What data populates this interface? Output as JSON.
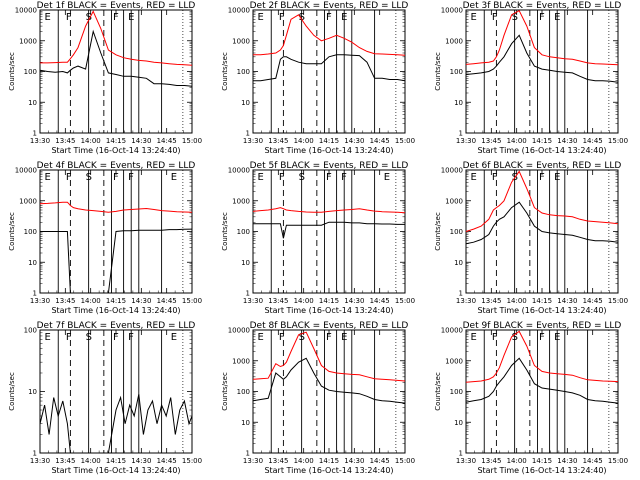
{
  "figure": {
    "xtick_labels": [
      "13:30",
      "13:45",
      "14:00",
      "14:15",
      "14:30",
      "14:45",
      "15:00"
    ],
    "xlabel": "Start Time (16-Oct-14 13:24:40)",
    "ylabel": "Counts/sec",
    "colors": {
      "events": "#000000",
      "lld": "#ff0000"
    }
  },
  "chart_data": [
    {
      "type": "line",
      "title": "Det 1f BLACK = Events, RED = LLD",
      "has_lld": true,
      "ylim": [
        1,
        10000
      ],
      "yscale": "log",
      "ytick_labels": [
        "1",
        "10",
        "100",
        "1000",
        "10000"
      ],
      "xlim_minutes": [
        0,
        100
      ],
      "segment_labels": [
        "E",
        "F",
        "S",
        "F",
        "E"
      ],
      "series": [
        {
          "name": "BLACK = Events",
          "x": [
            0,
            5,
            10,
            15,
            18,
            20,
            22,
            25,
            30,
            35,
            40,
            45,
            50,
            55,
            60,
            65,
            70,
            75,
            80,
            85,
            90,
            95,
            100
          ],
          "y": [
            110,
            100,
            95,
            100,
            90,
            110,
            130,
            150,
            120,
            2000,
            400,
            90,
            80,
            70,
            70,
            65,
            60,
            40,
            40,
            38,
            35,
            35,
            33
          ]
        },
        {
          "name": "RED = LLD",
          "x": [
            0,
            5,
            10,
            15,
            18,
            20,
            22,
            25,
            30,
            35,
            40,
            45,
            50,
            55,
            60,
            65,
            70,
            75,
            80,
            85,
            90,
            95,
            100
          ],
          "y": [
            190,
            190,
            195,
            200,
            200,
            260,
            350,
            600,
            3000,
            9000,
            2500,
            500,
            350,
            280,
            250,
            230,
            220,
            200,
            190,
            180,
            170,
            165,
            160
          ]
        }
      ]
    },
    {
      "type": "line",
      "title": "Det 2f BLACK = Events, RED = LLD",
      "has_lld": true,
      "ylim": [
        1,
        10000
      ],
      "yscale": "log",
      "ytick_labels": [
        "1",
        "10",
        "100",
        "1000",
        "10000"
      ],
      "xlim_minutes": [
        0,
        100
      ],
      "segment_labels": [
        "E",
        "F",
        "S",
        "F",
        "E"
      ],
      "series": [
        {
          "name": "BLACK = Events",
          "x": [
            0,
            5,
            10,
            15,
            18,
            20,
            22,
            25,
            30,
            35,
            40,
            45,
            50,
            55,
            60,
            65,
            70,
            75,
            80,
            85,
            90,
            95,
            100
          ],
          "y": [
            50,
            50,
            55,
            60,
            250,
            300,
            300,
            250,
            200,
            180,
            180,
            180,
            300,
            350,
            350,
            340,
            330,
            200,
            60,
            60,
            55,
            55,
            50
          ]
        },
        {
          "name": "RED = LLD",
          "x": [
            0,
            5,
            10,
            15,
            18,
            20,
            22,
            25,
            30,
            35,
            40,
            45,
            50,
            55,
            60,
            65,
            70,
            75,
            80,
            85,
            90,
            95,
            100
          ],
          "y": [
            350,
            350,
            370,
            400,
            500,
            700,
            1500,
            5000,
            7000,
            3000,
            1500,
            1000,
            1200,
            1500,
            1200,
            900,
            600,
            450,
            380,
            370,
            360,
            350,
            340
          ]
        }
      ]
    },
    {
      "type": "line",
      "title": "Det 3f BLACK = Events, RED = LLD",
      "has_lld": true,
      "ylim": [
        1,
        10000
      ],
      "yscale": "log",
      "ytick_labels": [
        "1",
        "10",
        "100",
        "1000",
        "10000"
      ],
      "xlim_minutes": [
        0,
        100
      ],
      "segment_labels": [
        "E",
        "F",
        "S",
        "F",
        "E"
      ],
      "series": [
        {
          "name": "BLACK = Events",
          "x": [
            0,
            5,
            10,
            15,
            18,
            20,
            22,
            25,
            30,
            35,
            40,
            45,
            50,
            55,
            60,
            65,
            70,
            75,
            80,
            85,
            90,
            95,
            100
          ],
          "y": [
            80,
            85,
            90,
            100,
            120,
            150,
            200,
            300,
            800,
            1500,
            400,
            150,
            120,
            110,
            100,
            95,
            90,
            70,
            55,
            50,
            50,
            48,
            45
          ]
        },
        {
          "name": "RED = LLD",
          "x": [
            0,
            5,
            10,
            15,
            18,
            20,
            22,
            25,
            30,
            35,
            40,
            45,
            50,
            55,
            60,
            65,
            70,
            75,
            80,
            85,
            90,
            95,
            100
          ],
          "y": [
            170,
            180,
            190,
            200,
            220,
            300,
            500,
            1500,
            7000,
            9500,
            3000,
            600,
            350,
            300,
            280,
            260,
            250,
            220,
            190,
            180,
            175,
            170,
            165
          ]
        }
      ]
    },
    {
      "type": "line",
      "title": "Det 4f BLACK = Events, RED = LLD",
      "has_lld": true,
      "ylim": [
        1,
        10000
      ],
      "yscale": "log",
      "ytick_labels": [
        "1",
        "10",
        "100",
        "1000",
        "10000"
      ],
      "xlim_minutes": [
        0,
        100
      ],
      "segment_labels": [
        "E",
        "F",
        "S",
        "F",
        "F",
        "E"
      ],
      "series": [
        {
          "name": "BLACK = Events",
          "x": [
            0,
            5,
            10,
            15,
            18,
            20,
            22,
            25,
            30,
            35,
            40,
            45,
            50,
            55,
            60,
            65,
            70,
            75,
            80,
            85,
            90,
            95,
            100
          ],
          "y": [
            100,
            100,
            100,
            100,
            100,
            1,
            1,
            1,
            1,
            1,
            1,
            1,
            100,
            105,
            105,
            110,
            110,
            110,
            110,
            115,
            115,
            118,
            120
          ]
        },
        {
          "name": "RED = LLD",
          "x": [
            0,
            5,
            10,
            15,
            18,
            20,
            22,
            25,
            30,
            35,
            40,
            45,
            50,
            55,
            60,
            65,
            70,
            75,
            80,
            85,
            90,
            95,
            100
          ],
          "y": [
            800,
            820,
            850,
            900,
            900,
            700,
            600,
            550,
            500,
            480,
            450,
            420,
            450,
            500,
            520,
            540,
            560,
            520,
            480,
            460,
            440,
            430,
            420
          ]
        }
      ]
    },
    {
      "type": "line",
      "title": "Det 5f BLACK = Events, RED = LLD",
      "has_lld": true,
      "ylim": [
        1,
        10000
      ],
      "yscale": "log",
      "ytick_labels": [
        "1",
        "10",
        "100",
        "1000",
        "10000"
      ],
      "xlim_minutes": [
        0,
        100
      ],
      "segment_labels": [
        "E",
        "F",
        "S",
        "F",
        "F",
        "E"
      ],
      "series": [
        {
          "name": "BLACK = Events",
          "x": [
            0,
            5,
            10,
            15,
            18,
            20,
            22,
            25,
            30,
            35,
            40,
            45,
            50,
            55,
            60,
            65,
            70,
            75,
            80,
            85,
            90,
            95,
            100
          ],
          "y": [
            180,
            180,
            180,
            180,
            180,
            60,
            160,
            160,
            160,
            160,
            160,
            160,
            200,
            200,
            200,
            190,
            190,
            180,
            180,
            175,
            175,
            170,
            170
          ]
        },
        {
          "name": "RED = LLD",
          "x": [
            0,
            5,
            10,
            15,
            18,
            20,
            22,
            25,
            30,
            35,
            40,
            45,
            50,
            55,
            60,
            65,
            70,
            75,
            80,
            85,
            90,
            95,
            100
          ],
          "y": [
            450,
            480,
            500,
            550,
            600,
            550,
            500,
            480,
            450,
            430,
            420,
            420,
            450,
            480,
            500,
            520,
            550,
            500,
            460,
            440,
            430,
            420,
            410
          ]
        }
      ]
    },
    {
      "type": "line",
      "title": "Det 6f BLACK = Events, RED = LLD",
      "has_lld": true,
      "ylim": [
        1,
        10000
      ],
      "yscale": "log",
      "ytick_labels": [
        "1",
        "10",
        "100",
        "1000",
        "10000"
      ],
      "xlim_minutes": [
        0,
        100
      ],
      "segment_labels": [
        "E",
        "F",
        "S",
        "F",
        "E"
      ],
      "series": [
        {
          "name": "BLACK = Events",
          "x": [
            0,
            5,
            10,
            15,
            18,
            20,
            22,
            25,
            30,
            35,
            40,
            45,
            50,
            55,
            60,
            65,
            70,
            75,
            80,
            85,
            90,
            95,
            100
          ],
          "y": [
            40,
            45,
            55,
            80,
            150,
            200,
            250,
            300,
            600,
            900,
            400,
            150,
            100,
            90,
            85,
            80,
            75,
            65,
            55,
            50,
            50,
            48,
            45
          ]
        },
        {
          "name": "RED = LLD",
          "x": [
            0,
            5,
            10,
            15,
            18,
            20,
            22,
            25,
            30,
            35,
            40,
            45,
            50,
            55,
            60,
            65,
            70,
            75,
            80,
            85,
            90,
            95,
            100
          ],
          "y": [
            100,
            120,
            150,
            250,
            500,
            600,
            700,
            1000,
            4000,
            9000,
            2500,
            600,
            400,
            350,
            330,
            320,
            300,
            250,
            220,
            210,
            200,
            190,
            180
          ]
        }
      ]
    },
    {
      "type": "line",
      "title": "Det 7f BLACK = Events, RED = LLD",
      "has_lld": false,
      "ylim": [
        1,
        100
      ],
      "yscale": "log",
      "ytick_labels": [
        "1",
        "10",
        "100"
      ],
      "xlim_minutes": [
        0,
        100
      ],
      "segment_labels": [
        "E",
        "F",
        "S",
        "F",
        "F",
        "E"
      ],
      "series": [
        {
          "name": "BLACK = Events",
          "x": [
            0,
            3,
            6,
            9,
            12,
            15,
            18,
            20,
            22,
            25,
            30,
            35,
            40,
            45,
            50,
            53,
            56,
            59,
            62,
            65,
            68,
            71,
            74,
            77,
            80,
            83,
            86,
            89,
            92,
            95,
            98,
            100
          ],
          "y": [
            3,
            6,
            2,
            8,
            4,
            7,
            3,
            1,
            1,
            1,
            1,
            1,
            1,
            1,
            5,
            8,
            3,
            6,
            4,
            9,
            2,
            5,
            7,
            3,
            6,
            4,
            8,
            2,
            5,
            7,
            3,
            4
          ]
        }
      ]
    },
    {
      "type": "line",
      "title": "Det 8f BLACK = Events, RED = LLD",
      "has_lld": true,
      "ylim": [
        1,
        10000
      ],
      "yscale": "log",
      "ytick_labels": [
        "1",
        "10",
        "100",
        "1000",
        "10000"
      ],
      "xlim_minutes": [
        0,
        100
      ],
      "segment_labels": [
        "E",
        "F",
        "S",
        "F",
        "E"
      ],
      "series": [
        {
          "name": "BLACK = Events",
          "x": [
            0,
            5,
            10,
            15,
            18,
            20,
            22,
            25,
            30,
            35,
            40,
            45,
            50,
            55,
            60,
            65,
            70,
            75,
            80,
            85,
            90,
            95,
            100
          ],
          "y": [
            50,
            55,
            60,
            400,
            300,
            250,
            300,
            500,
            900,
            1200,
            400,
            150,
            110,
            100,
            95,
            90,
            85,
            70,
            55,
            50,
            48,
            45,
            42
          ]
        },
        {
          "name": "RED = LLD",
          "x": [
            0,
            5,
            10,
            15,
            18,
            20,
            22,
            25,
            30,
            35,
            40,
            45,
            50,
            55,
            60,
            65,
            70,
            75,
            80,
            85,
            90,
            95,
            100
          ],
          "y": [
            250,
            260,
            270,
            800,
            650,
            700,
            900,
            2000,
            7000,
            8500,
            2500,
            700,
            450,
            400,
            380,
            360,
            350,
            300,
            260,
            250,
            240,
            230,
            220
          ]
        }
      ]
    },
    {
      "type": "line",
      "title": "Det 9f BLACK = Events, RED = LLD",
      "has_lld": true,
      "ylim": [
        1,
        10000
      ],
      "yscale": "log",
      "ytick_labels": [
        "1",
        "10",
        "100",
        "1000",
        "10000"
      ],
      "xlim_minutes": [
        0,
        100
      ],
      "segment_labels": [
        "E",
        "F",
        "S",
        "F",
        "E"
      ],
      "series": [
        {
          "name": "BLACK = Events",
          "x": [
            0,
            5,
            10,
            15,
            18,
            20,
            22,
            25,
            30,
            35,
            40,
            45,
            50,
            55,
            60,
            65,
            70,
            75,
            80,
            85,
            90,
            95,
            100
          ],
          "y": [
            45,
            50,
            55,
            70,
            100,
            150,
            200,
            300,
            700,
            1200,
            500,
            180,
            130,
            120,
            110,
            100,
            90,
            75,
            55,
            50,
            48,
            45,
            42
          ]
        },
        {
          "name": "RED = LLD",
          "x": [
            0,
            5,
            10,
            15,
            18,
            20,
            22,
            25,
            30,
            35,
            40,
            45,
            50,
            55,
            60,
            65,
            70,
            75,
            80,
            85,
            90,
            95,
            100
          ],
          "y": [
            200,
            210,
            220,
            250,
            300,
            400,
            600,
            1500,
            6000,
            9000,
            3000,
            700,
            450,
            400,
            380,
            360,
            340,
            280,
            240,
            230,
            220,
            215,
            210
          ]
        }
      ]
    }
  ]
}
